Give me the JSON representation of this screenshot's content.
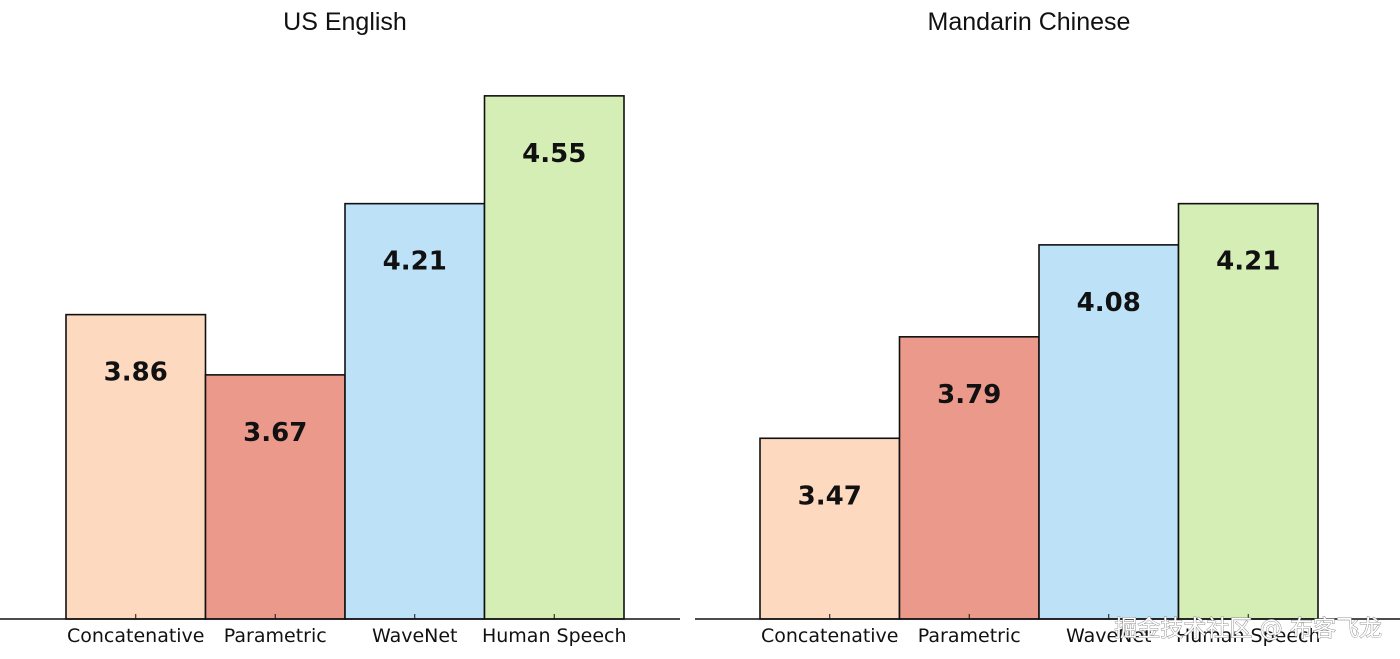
{
  "chart_data": [
    {
      "type": "bar",
      "title": "US English",
      "categories": [
        "Concatenative",
        "Parametric",
        "WaveNet",
        "Human Speech"
      ],
      "values": [
        3.86,
        3.67,
        4.21,
        4.55
      ],
      "value_labels": [
        "3.86",
        "3.67",
        "4.21",
        "4.55"
      ],
      "colors": [
        "#fdd9c0",
        "#ea998b",
        "#bde2f8",
        "#d4eeb5"
      ],
      "ylim": [
        2.9,
        4.6
      ],
      "grid": false
    },
    {
      "type": "bar",
      "title": "Mandarin Chinese",
      "categories": [
        "Concatenative",
        "Parametric",
        "WaveNet",
        "Human Speech"
      ],
      "values": [
        3.47,
        3.79,
        4.08,
        4.21
      ],
      "value_labels": [
        "3.47",
        "3.79",
        "4.08",
        "4.21"
      ],
      "colors": [
        "#fdd9c0",
        "#ea998b",
        "#bde2f8",
        "#d4eeb5"
      ],
      "ylim": [
        2.9,
        4.6
      ],
      "grid": false
    }
  ],
  "watermark": "掘金技术社区 @ 布客飞龙"
}
